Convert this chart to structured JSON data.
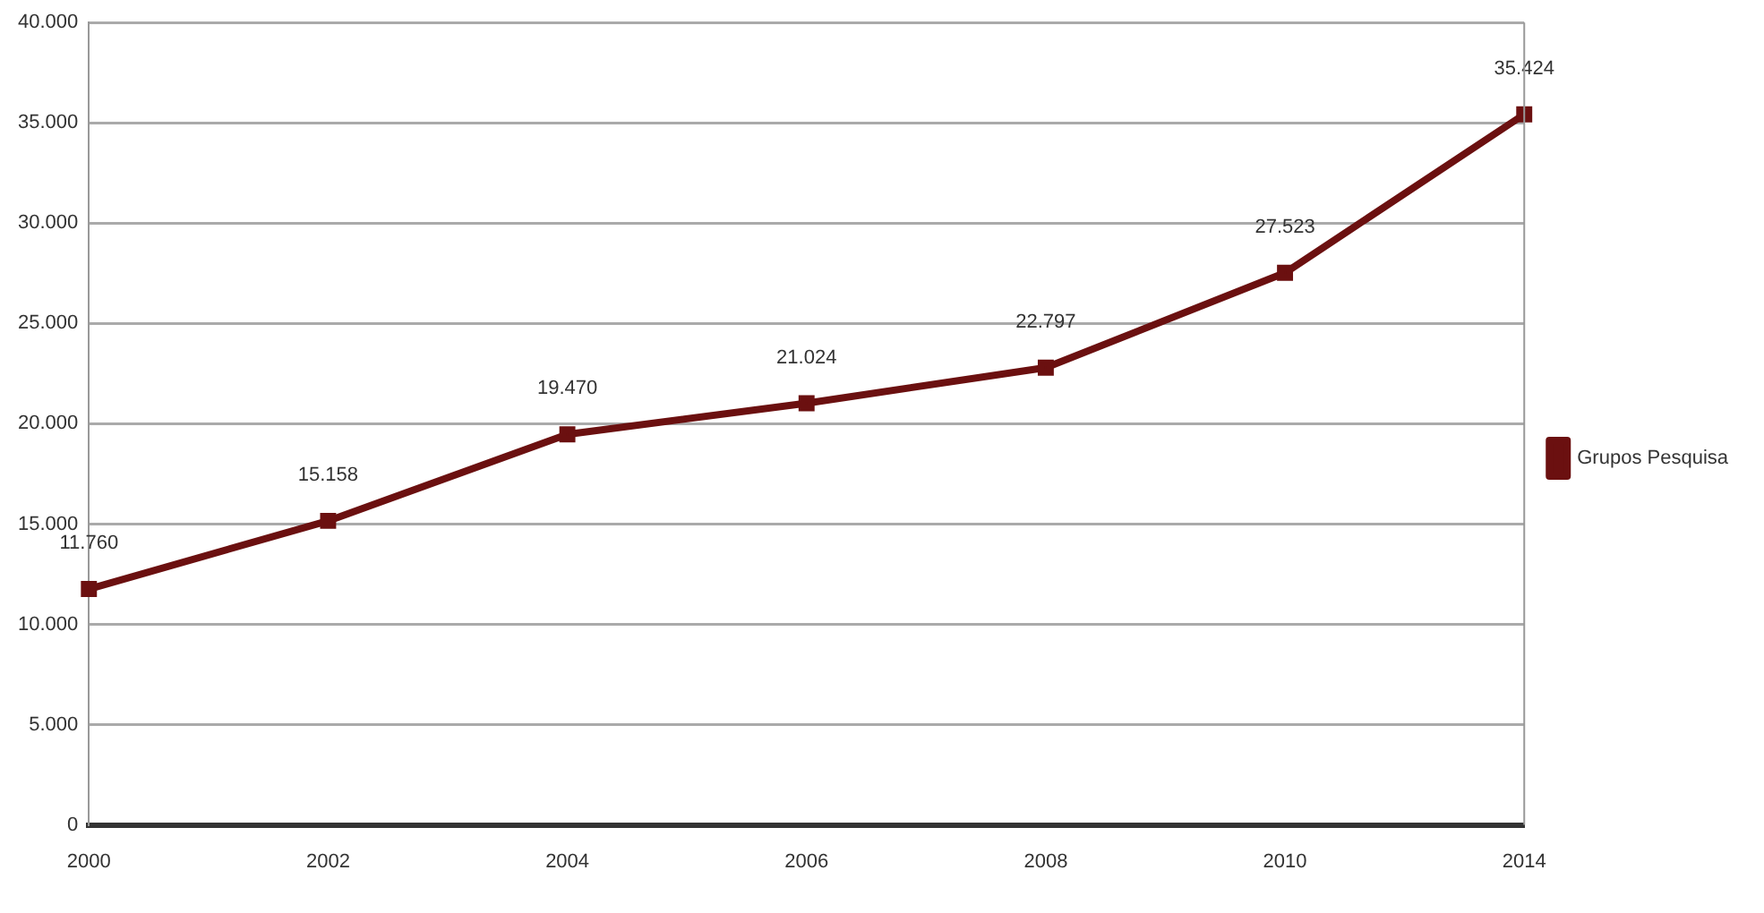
{
  "chart_data": {
    "type": "line",
    "categories": [
      "2000",
      "2002",
      "2004",
      "2006",
      "2008",
      "2010",
      "2014"
    ],
    "series": [
      {
        "name": "Grupos Pesquisa",
        "color": "#6b1010",
        "values": [
          11760,
          15158,
          19470,
          21024,
          22797,
          27523,
          35424
        ],
        "value_labels": [
          "11.760",
          "15.158",
          "19.470",
          "21.024",
          "22.797",
          "27.523",
          "35.424"
        ]
      }
    ],
    "ylim": [
      0,
      40000
    ],
    "yticks": [
      {
        "value": 0,
        "label": "0"
      },
      {
        "value": 5000,
        "label": "5.000"
      },
      {
        "value": 10000,
        "label": "10.000"
      },
      {
        "value": 15000,
        "label": "15.000"
      },
      {
        "value": 20000,
        "label": "20.000"
      },
      {
        "value": 25000,
        "label": "25.000"
      },
      {
        "value": 30000,
        "label": "30.000"
      },
      {
        "value": 35000,
        "label": "35.000"
      },
      {
        "value": 40000,
        "label": "40.000"
      }
    ],
    "grid": "y",
    "legend": "right",
    "marker": "square",
    "line_style": "solid"
  }
}
